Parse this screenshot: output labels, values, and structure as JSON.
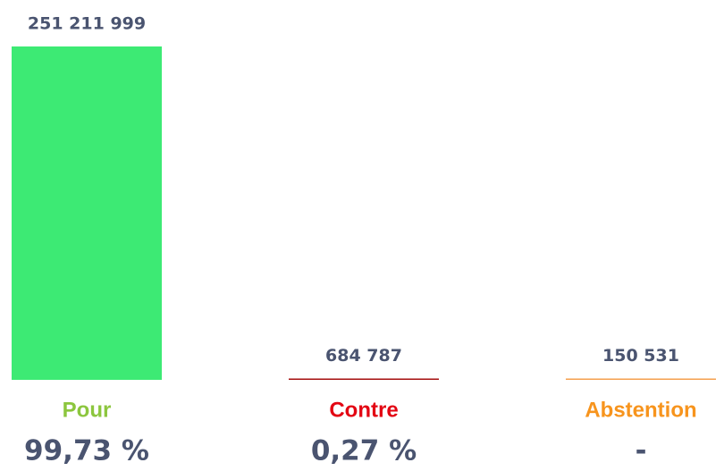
{
  "chart_data": {
    "type": "bar",
    "categories": [
      "Pour",
      "Contre",
      "Abstention"
    ],
    "values": [
      251211999,
      684787,
      150531
    ],
    "value_labels": [
      "251 211 999",
      "684 787",
      "150 531"
    ],
    "shares": [
      99.73,
      0.27,
      null
    ],
    "share_labels": [
      "99,73 %",
      "0,27 %",
      "-"
    ],
    "bar_colors": [
      "#3dea74",
      "#a50f0f",
      "#f5a04e"
    ],
    "category_colors": [
      "#8cc63e",
      "#e30613",
      "#f7941d"
    ]
  }
}
